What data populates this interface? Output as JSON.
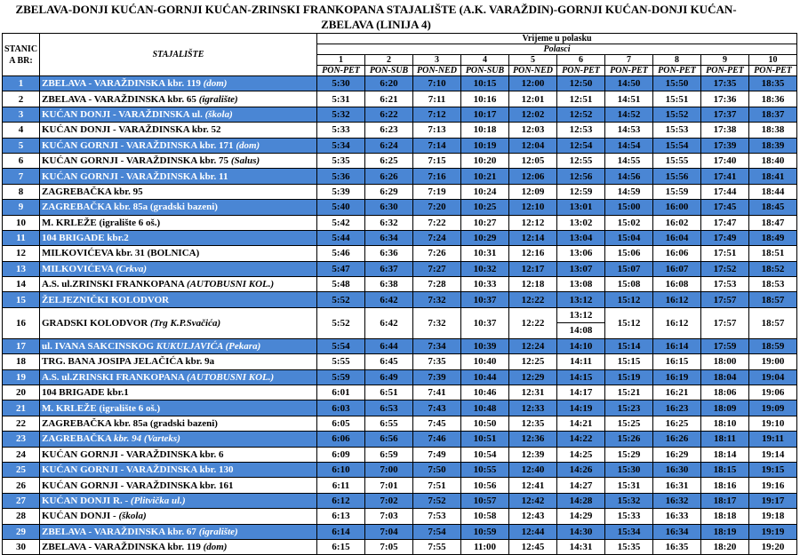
{
  "header": {
    "title": "ZBELAVA-DONJI KUĆAN-GORNJI KUĆAN-ZRINSKI FRANKOPANA STAJALIŠTE (A.K. VARAŽDIN)-GORNJI KUĆAN-DONJI KUĆAN-ZBELAVA (LINIJA 4)"
  },
  "table": {
    "col_no": "STANIC A BR:",
    "col_stop": "STAJALIŠTE",
    "col_time": "Vrijeme u polasku",
    "col_departures": "Polasci",
    "departures": [
      1,
      2,
      3,
      4,
      5,
      6,
      7,
      8,
      9,
      10
    ],
    "days": [
      "PON-PET",
      "PON-SUB",
      "PON-NED",
      "PON-SUB",
      "PON-NED",
      "PON-PET",
      "PON-PET",
      "PON-PET",
      "PON-PET",
      "PON-PET"
    ],
    "rows": [
      {
        "no": 1,
        "name": "ZBELAVA - VARAŽDINSKA kbr. 119",
        "note": "(dom)",
        "times": [
          "5:30",
          "6:20",
          "7:10",
          "10:15",
          "12:00",
          "12:50",
          "14:50",
          "15:50",
          "17:35",
          "18:35"
        ]
      },
      {
        "no": 2,
        "name": "ZBELAVA - VARAŽDINSKA kbr. 65",
        "note": "(igralište)",
        "times": [
          "5:31",
          "6:21",
          "7:11",
          "10:16",
          "12:01",
          "12:51",
          "14:51",
          "15:51",
          "17:36",
          "18:36"
        ]
      },
      {
        "no": 3,
        "name": "KUĆAN DONJI - VARAŽDINSKA ul.",
        "note": "(škola)",
        "times": [
          "5:32",
          "6:22",
          "7:12",
          "10:17",
          "12:02",
          "12:52",
          "14:52",
          "15:52",
          "17:37",
          "18:37"
        ]
      },
      {
        "no": 4,
        "name": "KUĆAN DONJI - VARAŽDINSKA kbr. 52",
        "times": [
          "5:33",
          "6:23",
          "7:13",
          "10:18",
          "12:03",
          "12:53",
          "14:53",
          "15:53",
          "17:38",
          "18:38"
        ]
      },
      {
        "no": 5,
        "name": "KUĆAN GORNJI - VARAŽDINSKA kbr. 171",
        "note": "(dom)",
        "times": [
          "5:34",
          "6:24",
          "7:14",
          "10:19",
          "12:04",
          "12:54",
          "14:54",
          "15:54",
          "17:39",
          "18:39"
        ]
      },
      {
        "no": 6,
        "name": "KUĆAN GORNJI - VARAŽDINSKA kbr. 75",
        "note": "(Salus)",
        "times": [
          "5:35",
          "6:25",
          "7:15",
          "10:20",
          "12:05",
          "12:55",
          "14:55",
          "15:55",
          "17:40",
          "18:40"
        ]
      },
      {
        "no": 7,
        "name": "KUĆAN GORNJI - VARAŽDINSKA kbr. 11",
        "times": [
          "5:36",
          "6:26",
          "7:16",
          "10:21",
          "12:06",
          "12:56",
          "14:56",
          "15:56",
          "17:41",
          "18:41"
        ]
      },
      {
        "no": 8,
        "name": "ZAGREBAČKA kbr. 95",
        "times": [
          "5:39",
          "6:29",
          "7:19",
          "10:24",
          "12:09",
          "12:59",
          "14:59",
          "15:59",
          "17:44",
          "18:44"
        ]
      },
      {
        "no": 9,
        "name": "ZAGREBAČKA kbr. 85a (gradski bazeni)",
        "times": [
          "5:40",
          "6:30",
          "7:20",
          "10:25",
          "12:10",
          "13:01",
          "15:00",
          "16:00",
          "17:45",
          "18:45"
        ]
      },
      {
        "no": 10,
        "name": "M. KRLEŽE  (igralište 6 oš.)",
        "times": [
          "5:42",
          "6:32",
          "7:22",
          "10:27",
          "12:12",
          "13:02",
          "15:02",
          "16:02",
          "17:47",
          "18:47"
        ]
      },
      {
        "no": 11,
        "name": "104 BRIGADE kbr.2",
        "times": [
          "5:44",
          "6:34",
          "7:24",
          "10:29",
          "12:14",
          "13:04",
          "15:04",
          "16:04",
          "17:49",
          "18:49"
        ]
      },
      {
        "no": 12,
        "name": "MILKOVIĆEVA kbr. 31 (BOLNICA)",
        "times": [
          "5:46",
          "6:36",
          "7:26",
          "10:31",
          "12:16",
          "13:06",
          "15:06",
          "16:06",
          "17:51",
          "18:51"
        ]
      },
      {
        "no": 13,
        "name": "MILKOVIĆEVA",
        "note": "(Crkva)",
        "times": [
          "5:47",
          "6:37",
          "7:27",
          "10:32",
          "12:17",
          "13:07",
          "15:07",
          "16:07",
          "17:52",
          "18:52"
        ]
      },
      {
        "no": 14,
        "name": "A.S. ul.ZRINSKI FRANKOPANA",
        "note": "(AUTOBUSNI KOL.)",
        "times": [
          "5:48",
          "6:38",
          "7:28",
          "10:33",
          "12:18",
          "13:08",
          "15:08",
          "16:08",
          "17:53",
          "18:53"
        ]
      },
      {
        "no": 15,
        "name": "ŽELJEZNIČKI KOLODVOR",
        "times": [
          "5:52",
          "6:42",
          "7:32",
          "10:37",
          "12:22",
          "13:12",
          "15:12",
          "16:12",
          "17:57",
          "18:57"
        ]
      },
      {
        "no": 16,
        "name": "GRADSKI KOLODVOR",
        "note": "(Trg K.P.Svačića)",
        "times": [
          "5:52",
          "6:42",
          "7:32",
          "10:37",
          "12:22",
          [
            "13:12",
            "14:08"
          ],
          "15:12",
          "16:12",
          "17:57",
          "18:57"
        ]
      },
      {
        "no": 17,
        "name": "ul. IVANA SAKCINSKOG",
        "note": "KUKULJAVIĆA (Pekara)",
        "times": [
          "5:54",
          "6:44",
          "7:34",
          "10:39",
          "12:24",
          "14:10",
          "15:14",
          "16:14",
          "17:59",
          "18:59"
        ]
      },
      {
        "no": 18,
        "name": "TRG. BANA JOSIPA JELAČIĆA kbr. 9a",
        "times": [
          "5:55",
          "6:45",
          "7:35",
          "10:40",
          "12:25",
          "14:11",
          "15:15",
          "16:15",
          "18:00",
          "19:00"
        ]
      },
      {
        "no": 19,
        "name": "A.S. ul.ZRINSKI FRANKOPANA",
        "note": "(AUTOBUSNI KOL.)",
        "times": [
          "5:59",
          "6:49",
          "7:39",
          "10:44",
          "12:29",
          "14:15",
          "15:19",
          "16:19",
          "18:04",
          "19:04"
        ]
      },
      {
        "no": 20,
        "name": "104 BRIGADE kbr.1",
        "times": [
          "6:01",
          "6:51",
          "7:41",
          "10:46",
          "12:31",
          "14:17",
          "15:21",
          "16:21",
          "18:06",
          "19:06"
        ]
      },
      {
        "no": 21,
        "name": "M. KRLEŽE  (igralište 6 oš.)",
        "times": [
          "6:03",
          "6:53",
          "7:43",
          "10:48",
          "12:33",
          "14:19",
          "15:23",
          "16:23",
          "18:09",
          "19:09"
        ]
      },
      {
        "no": 22,
        "name": "ZAGREBAČKA kbr. 85a (gradski bazeni)",
        "times": [
          "6:05",
          "6:55",
          "7:45",
          "10:50",
          "12:35",
          "14:21",
          "15:25",
          "16:25",
          "18:10",
          "19:10"
        ]
      },
      {
        "no": 23,
        "name": "ZAGREBAČKA",
        "note": "kbr. 94 (Varteks)",
        "times": [
          "6:06",
          "6:56",
          "7:46",
          "10:51",
          "12:36",
          "14:22",
          "15:26",
          "16:26",
          "18:11",
          "19:11"
        ]
      },
      {
        "no": 24,
        "name": "KUĆAN GORNJI - VARAŽDINSKA kbr. 6",
        "times": [
          "6:09",
          "6:59",
          "7:49",
          "10:54",
          "12:39",
          "14:25",
          "15:29",
          "16:29",
          "18:14",
          "19:14"
        ]
      },
      {
        "no": 25,
        "name": "KUĆAN GORNJI -  VARAŽDINSKA kbr. 130",
        "times": [
          "6:10",
          "7:00",
          "7:50",
          "10:55",
          "12:40",
          "14:26",
          "15:30",
          "16:30",
          "18:15",
          "19:15"
        ]
      },
      {
        "no": 26,
        "name": "KUĆAN  GORNJI - VARAŽDINSKA kbr. 161",
        "times": [
          "6:11",
          "7:01",
          "7:51",
          "10:56",
          "12:41",
          "14:27",
          "15:31",
          "16:31",
          "18:16",
          "19:16"
        ]
      },
      {
        "no": 27,
        "name": "KUĆAN DONJI R. -",
        "note": "(Plitvička ul.)",
        "times": [
          "6:12",
          "7:02",
          "7:52",
          "10:57",
          "12:42",
          "14:28",
          "15:32",
          "16:32",
          "18:17",
          "19:17"
        ]
      },
      {
        "no": 28,
        "name": "KUĆAN DONJI -",
        "note": "(škola)",
        "times": [
          "6:13",
          "7:03",
          "7:53",
          "10:58",
          "12:43",
          "14:29",
          "15:33",
          "16:33",
          "18:18",
          "19:18"
        ]
      },
      {
        "no": 29,
        "name": "ZBELAVA - VARAŽDINSKA kbr. 67",
        "note": "(igralište)",
        "times": [
          "6:14",
          "7:04",
          "7:54",
          "10:59",
          "12:44",
          "14:30",
          "15:34",
          "16:34",
          "18:19",
          "19:19"
        ]
      },
      {
        "no": 30,
        "name": "ZBELAVA - VARAŽDINSKA kbr. 119",
        "note": "(dom)",
        "times": [
          "6:15",
          "7:05",
          "7:55",
          "11:00",
          "12:45",
          "14:31",
          "15:35",
          "16:35",
          "18:20",
          "19:20"
        ]
      }
    ]
  }
}
